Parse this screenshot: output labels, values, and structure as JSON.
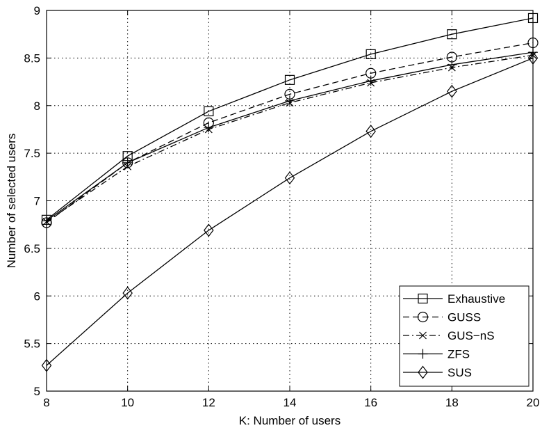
{
  "chart_data": {
    "type": "line",
    "xlabel": "K: Number of users",
    "ylabel": "Number of selected users",
    "xlim": [
      8,
      20
    ],
    "ylim": [
      5,
      9
    ],
    "xticks": [
      8,
      10,
      12,
      14,
      16,
      18,
      20
    ],
    "yticks": [
      5,
      5.5,
      6,
      6.5,
      7,
      7.5,
      8,
      8.5,
      9
    ],
    "xtick_labels": [
      "8",
      "10",
      "12",
      "14",
      "16",
      "18",
      "20"
    ],
    "ytick_labels": [
      "5",
      "5.5",
      "6",
      "6.5",
      "7",
      "7.5",
      "8",
      "8.5",
      "9"
    ],
    "grid": true,
    "legend_position": "bottom-right",
    "x": [
      8,
      10,
      12,
      14,
      16,
      18,
      20
    ],
    "series": [
      {
        "name": "Exhaustive",
        "marker": "square",
        "dash": "solid",
        "values": [
          6.8,
          7.47,
          7.94,
          8.27,
          8.54,
          8.75,
          8.92
        ]
      },
      {
        "name": "GUSS",
        "marker": "circle",
        "dash": "dashed",
        "values": [
          6.77,
          7.4,
          7.82,
          8.12,
          8.34,
          8.51,
          8.66
        ]
      },
      {
        "name": "GUS−nS",
        "marker": "x",
        "dash": "dashdot",
        "values": [
          6.78,
          7.36,
          7.75,
          8.03,
          8.24,
          8.4,
          8.53
        ]
      },
      {
        "name": "ZFS",
        "marker": "plus",
        "dash": "solid",
        "values": [
          6.79,
          7.4,
          7.77,
          8.05,
          8.26,
          8.43,
          8.56
        ]
      },
      {
        "name": "SUS",
        "marker": "diamond",
        "dash": "solid",
        "values": [
          5.27,
          6.03,
          6.69,
          7.24,
          7.73,
          8.15,
          8.5
        ]
      }
    ],
    "colors": {
      "line": "#000000",
      "grid": "#000000",
      "background": "#ffffff"
    }
  }
}
